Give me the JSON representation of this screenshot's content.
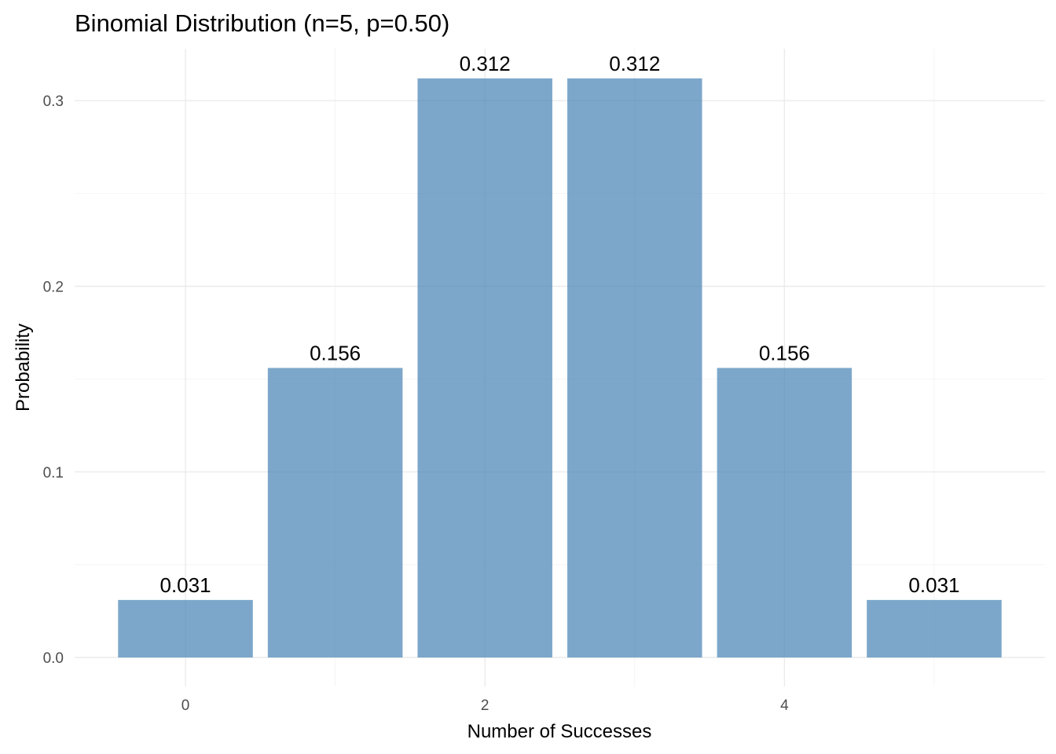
{
  "chart_data": {
    "type": "bar",
    "title": "Binomial Distribution (n=5, p=0.50)",
    "xlabel": "Number of Successes",
    "ylabel": "Probability",
    "x": [
      0,
      1,
      2,
      3,
      4,
      5
    ],
    "values": [
      0.031,
      0.156,
      0.312,
      0.312,
      0.156,
      0.031
    ],
    "data_labels": [
      "0.031",
      "0.156",
      "0.312",
      "0.312",
      "0.156",
      "0.031"
    ],
    "x_ticks": [
      0,
      2,
      4
    ],
    "x_tick_labels": [
      "0",
      "2",
      "4"
    ],
    "y_ticks": [
      0.0,
      0.1,
      0.2,
      0.3
    ],
    "y_tick_labels": [
      "0.0",
      "0.1",
      "0.2",
      "0.3"
    ],
    "xlim": [
      -0.74,
      5.74
    ],
    "ylim": [
      -0.0156,
      0.328
    ],
    "grid": true,
    "legend": "none",
    "bar_color": "#4682B4",
    "bar_opacity": 0.7
  }
}
